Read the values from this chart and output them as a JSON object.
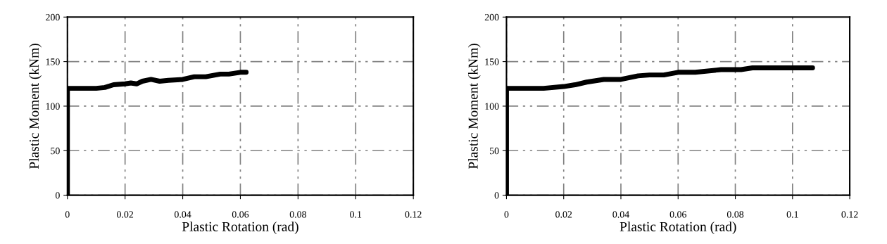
{
  "chart_data": [
    {
      "type": "line",
      "xlabel": "Plastic Rotation (rad)",
      "ylabel": "Plastic Moment (kNm)",
      "xlim": [
        0,
        0.12
      ],
      "ylim": [
        0,
        200
      ],
      "xticks": [
        0,
        0.02,
        0.04,
        0.06,
        0.08,
        0.1,
        0.12
      ],
      "yticks": [
        0,
        50,
        100,
        150,
        200
      ],
      "grid": true,
      "line_style": "solid",
      "marker": "none",
      "series": [
        {
          "color": "#000000",
          "x": [
            0,
            0,
            0.01,
            0.013,
            0.016,
            0.02,
            0.022,
            0.024,
            0.026,
            0.029,
            0.032,
            0.035,
            0.04,
            0.044,
            0.048,
            0.053,
            0.056,
            0.06,
            0.062
          ],
          "values": [
            0,
            120,
            120,
            121,
            124,
            125,
            126,
            125,
            128,
            130,
            128,
            129,
            130,
            133,
            133,
            136,
            136,
            138,
            138
          ]
        }
      ]
    },
    {
      "type": "line",
      "xlabel": "Plastic Rotation (rad)",
      "ylabel": "Plastic Moment (kNm)",
      "xlim": [
        0,
        0.12
      ],
      "ylim": [
        0,
        200
      ],
      "xticks": [
        0,
        0.02,
        0.04,
        0.06,
        0.08,
        0.1,
        0.12
      ],
      "yticks": [
        0,
        50,
        100,
        150,
        200
      ],
      "grid": true,
      "line_style": "solid",
      "marker": "none",
      "series": [
        {
          "color": "#000000",
          "x": [
            0,
            0,
            0.013,
            0.02,
            0.024,
            0.028,
            0.034,
            0.04,
            0.046,
            0.05,
            0.055,
            0.06,
            0.066,
            0.075,
            0.082,
            0.086,
            0.107
          ],
          "values": [
            0,
            120,
            120,
            122,
            124,
            127,
            130,
            130,
            134,
            135,
            135,
            138,
            138,
            141,
            141,
            143,
            143
          ]
        }
      ]
    }
  ]
}
